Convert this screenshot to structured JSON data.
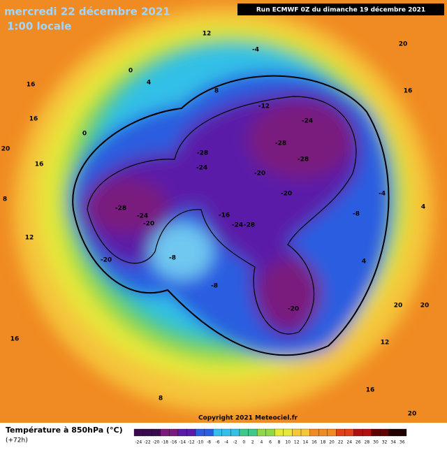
{
  "header": {
    "date": "mercredi 22 décembre 2021",
    "time": "1:00 locale",
    "run": "Run ECMWF 0Z du dimanche 19 décembre 2021"
  },
  "footer": {
    "title": "Température à 850hPa (°C)",
    "subtitle": "(+72h)",
    "copyright": "Copyright 2021 Meteociel.fr"
  },
  "colorbar": {
    "ticks": [
      -24,
      -22,
      -20,
      -18,
      -16,
      -14,
      -12,
      -10,
      -8,
      -6,
      -4,
      -2,
      0,
      2,
      4,
      6,
      8,
      10,
      12,
      14,
      16,
      18,
      20,
      22,
      24,
      26,
      28,
      30,
      32,
      34,
      36
    ]
  },
  "map": {
    "labels": [
      0,
      4,
      16,
      16,
      20,
      16,
      8,
      12,
      0,
      -28,
      -24,
      -20,
      -20,
      -28,
      -24,
      -28,
      -24,
      -28,
      -20,
      -20,
      -24,
      -28,
      -16,
      -20,
      -12,
      -8,
      -8,
      -8,
      -4,
      -4,
      4,
      20,
      20,
      12,
      16,
      8,
      20,
      20,
      16,
      8,
      12,
      16,
      4
    ]
  }
}
